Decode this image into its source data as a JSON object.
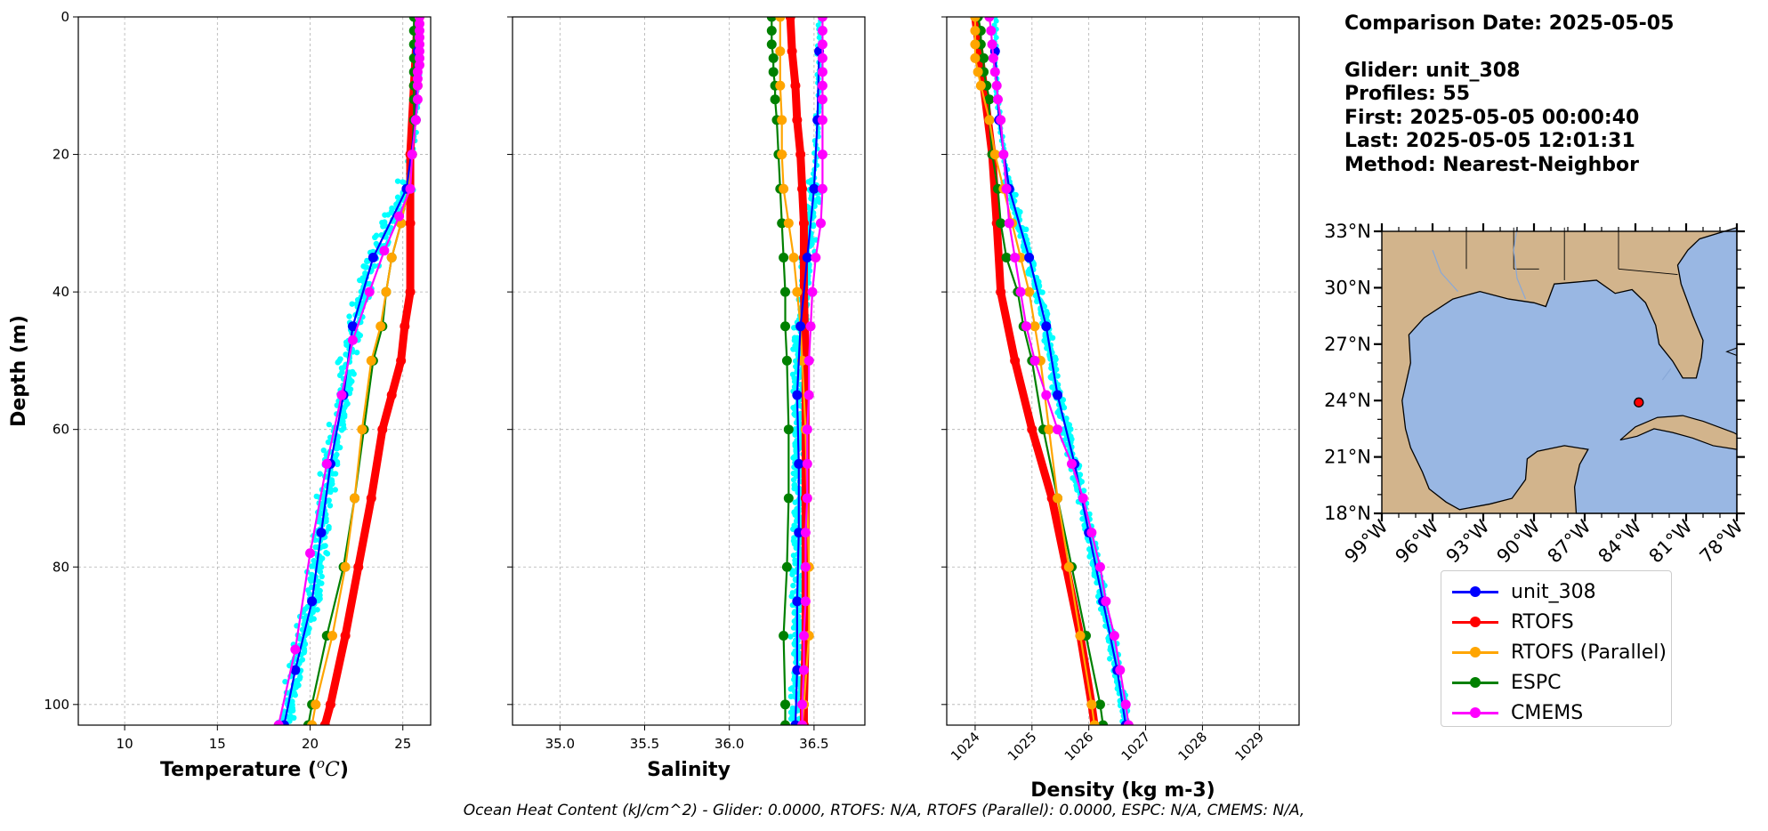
{
  "info": {
    "comparison_date": "Comparison Date: 2025-05-05",
    "glider": "Glider: unit_308",
    "profiles": "Profiles: 55",
    "first": "First: 2025-05-05 00:00:40",
    "last": "Last: 2025-05-05 12:01:31",
    "method": "Method: Nearest-Neighbor"
  },
  "footer_text": "Ocean Heat Content (kJ/cm^2) - Glider: 0.0000,  RTOFS: N/A,  RTOFS (Parallel): 0.0000,  ESPC: N/A,  CMEMS: N/A,",
  "legend": [
    {
      "label": "unit_308",
      "color": "#0000ff"
    },
    {
      "label": "RTOFS",
      "color": "#ff0000"
    },
    {
      "label": "RTOFS (Parallel)",
      "color": "#ffa500"
    },
    {
      "label": "ESPC",
      "color": "#008000"
    },
    {
      "label": "CMEMS",
      "color": "#ff00ff"
    }
  ],
  "colors": {
    "glider_scatter": "#00ffff",
    "unit_308": "#0000ff",
    "RTOFS": "#ff0000",
    "RTOFS_parallel": "#ffa500",
    "ESPC": "#008000",
    "CMEMS": "#ff00ff",
    "land": "#d2b48c",
    "water": "#99b7e3"
  },
  "chart_data": [
    {
      "type": "line",
      "ylabel": "Depth (m)",
      "xlabel": "Temperature ($^{o}C$)",
      "xlabel_display": "Temperature (",
      "xlabel_unit": "oC",
      "xlim": [
        7.5,
        26.5
      ],
      "ylim": [
        103,
        0
      ],
      "xticks": [
        10,
        15,
        20,
        25
      ],
      "yticks": [
        0,
        20,
        40,
        60,
        80,
        100
      ],
      "grid": true,
      "series": [
        {
          "name": "unit_308",
          "depth": [
            5,
            15,
            25,
            35,
            45,
            55,
            65,
            75,
            85,
            95,
            103
          ],
          "values": [
            25.8,
            25.7,
            25.2,
            23.4,
            22.3,
            21.8,
            21.1,
            20.6,
            20.1,
            19.2,
            18.6
          ]
        },
        {
          "name": "RTOFS",
          "depth": [
            0,
            10,
            20,
            30,
            40,
            45,
            50,
            55,
            60,
            70,
            80,
            90,
            100,
            103
          ],
          "values": [
            25.8,
            25.6,
            25.4,
            25.4,
            25.4,
            25.1,
            24.9,
            24.4,
            23.9,
            23.3,
            22.6,
            21.9,
            21.1,
            20.8
          ]
        },
        {
          "name": "RTOFS (Parallel)",
          "depth": [
            0,
            5,
            10,
            15,
            20,
            25,
            30,
            35,
            40,
            45,
            50,
            60,
            70,
            80,
            90,
            100,
            103
          ],
          "values": [
            25.9,
            25.8,
            25.8,
            25.7,
            25.5,
            25.3,
            24.9,
            24.4,
            24.1,
            23.8,
            23.3,
            22.8,
            22.4,
            21.9,
            21.2,
            20.3,
            20.1
          ]
        },
        {
          "name": "ESPC",
          "depth": [
            0,
            2,
            4,
            6,
            8,
            10,
            12,
            15,
            20,
            25,
            30,
            35,
            40,
            45,
            50,
            60,
            70,
            80,
            90,
            100,
            103
          ],
          "values": [
            25.6,
            25.6,
            25.6,
            25.6,
            25.6,
            25.6,
            25.6,
            25.6,
            25.5,
            25.3,
            24.9,
            24.4,
            24.1,
            23.9,
            23.4,
            22.9,
            22.4,
            21.8,
            20.9,
            20.1,
            19.9
          ]
        },
        {
          "name": "CMEMS",
          "depth": [
            0,
            1,
            2,
            3,
            4,
            5,
            6,
            7,
            8,
            9,
            10,
            12,
            15,
            20,
            25,
            29,
            34,
            40,
            47,
            55,
            65,
            78,
            92,
            103
          ],
          "values": [
            25.9,
            25.9,
            25.9,
            25.9,
            25.9,
            25.9,
            25.9,
            25.9,
            25.8,
            25.8,
            25.8,
            25.8,
            25.7,
            25.5,
            25.4,
            24.8,
            24.0,
            23.2,
            22.3,
            21.7,
            20.9,
            20.0,
            19.2,
            18.3
          ]
        }
      ]
    },
    {
      "type": "line",
      "xlabel": "Salinity",
      "xlim": [
        34.72,
        36.8
      ],
      "ylim": [
        103,
        0
      ],
      "xticks": [
        35.0,
        35.5,
        36.0,
        36.5
      ],
      "yticks": [
        0,
        20,
        40,
        60,
        80,
        100
      ],
      "grid": true,
      "series": [
        {
          "name": "unit_308",
          "depth": [
            5,
            15,
            25,
            35,
            45,
            55,
            65,
            75,
            85,
            95,
            103
          ],
          "values": [
            36.53,
            36.52,
            36.5,
            36.46,
            36.42,
            36.4,
            36.41,
            36.41,
            36.4,
            36.4,
            36.39
          ]
        },
        {
          "name": "RTOFS",
          "depth": [
            0,
            5,
            10,
            15,
            20,
            25,
            30,
            35,
            40,
            50,
            60,
            70,
            80,
            90,
            100,
            103
          ],
          "values": [
            36.36,
            36.37,
            36.39,
            36.4,
            36.42,
            36.43,
            36.44,
            36.44,
            36.44,
            36.45,
            36.45,
            36.45,
            36.45,
            36.45,
            36.44,
            36.44
          ]
        },
        {
          "name": "RTOFS (Parallel)",
          "depth": [
            0,
            5,
            10,
            15,
            20,
            25,
            30,
            35,
            40,
            45,
            50,
            60,
            70,
            80,
            90,
            100,
            103
          ],
          "values": [
            36.3,
            36.3,
            36.3,
            36.31,
            36.31,
            36.32,
            36.35,
            36.38,
            36.4,
            36.42,
            36.43,
            36.45,
            36.46,
            36.47,
            36.47,
            36.44,
            36.43
          ]
        },
        {
          "name": "ESPC",
          "depth": [
            0,
            2,
            4,
            6,
            8,
            10,
            12,
            15,
            20,
            25,
            30,
            35,
            40,
            45,
            50,
            60,
            70,
            80,
            90,
            100,
            103
          ],
          "values": [
            36.25,
            36.25,
            36.25,
            36.26,
            36.26,
            36.27,
            36.27,
            36.28,
            36.29,
            36.3,
            36.31,
            36.32,
            36.33,
            36.33,
            36.34,
            36.35,
            36.35,
            36.34,
            36.32,
            36.33,
            36.33
          ]
        },
        {
          "name": "CMEMS",
          "depth": [
            0,
            2,
            4,
            6,
            8,
            10,
            12,
            15,
            20,
            25,
            30,
            35,
            40,
            45,
            50,
            55,
            60,
            65,
            70,
            75,
            80,
            85,
            90,
            95,
            100,
            103
          ],
          "values": [
            36.55,
            36.55,
            36.55,
            36.55,
            36.55,
            36.55,
            36.55,
            36.55,
            36.55,
            36.55,
            36.54,
            36.51,
            36.49,
            36.48,
            36.47,
            36.47,
            36.46,
            36.46,
            36.46,
            36.45,
            36.45,
            36.45,
            36.44,
            36.44,
            36.43,
            36.43
          ]
        }
      ]
    },
    {
      "type": "line",
      "xlabel": "Density (kg m-3)",
      "xlim": [
        1023.5,
        1029.7
      ],
      "ylim": [
        103,
        0
      ],
      "xticks": [
        1024,
        1025,
        1026,
        1027,
        1028,
        1029
      ],
      "yticks": [
        0,
        20,
        40,
        60,
        80,
        100
      ],
      "grid": true,
      "series": [
        {
          "name": "unit_308",
          "depth": [
            5,
            15,
            25,
            35,
            45,
            55,
            65,
            75,
            85,
            95,
            103
          ],
          "values": [
            1024.35,
            1024.42,
            1024.6,
            1024.95,
            1025.25,
            1025.45,
            1025.75,
            1026.0,
            1026.25,
            1026.5,
            1026.65
          ]
        },
        {
          "name": "RTOFS",
          "depth": [
            0,
            10,
            20,
            30,
            40,
            50,
            60,
            70,
            80,
            90,
            100,
            103
          ],
          "values": [
            1024.0,
            1024.15,
            1024.3,
            1024.38,
            1024.45,
            1024.7,
            1025.0,
            1025.35,
            1025.6,
            1025.85,
            1026.05,
            1026.1
          ]
        },
        {
          "name": "RTOFS (Parallel)",
          "depth": [
            0,
            2,
            4,
            6,
            8,
            10,
            15,
            20,
            25,
            30,
            35,
            40,
            45,
            50,
            60,
            70,
            80,
            90,
            100,
            103
          ],
          "values": [
            1024.0,
            1024.0,
            1024.0,
            1024.0,
            1024.05,
            1024.1,
            1024.25,
            1024.35,
            1024.5,
            1024.65,
            1024.8,
            1024.95,
            1025.05,
            1025.15,
            1025.3,
            1025.45,
            1025.65,
            1025.85,
            1026.05,
            1026.1
          ]
        },
        {
          "name": "ESPC",
          "depth": [
            0,
            2,
            4,
            6,
            8,
            10,
            12,
            15,
            20,
            25,
            30,
            35,
            40,
            45,
            50,
            60,
            70,
            80,
            90,
            100,
            103
          ],
          "values": [
            1024.05,
            1024.1,
            1024.1,
            1024.15,
            1024.15,
            1024.2,
            1024.25,
            1024.25,
            1024.3,
            1024.4,
            1024.45,
            1024.55,
            1024.75,
            1024.85,
            1025.0,
            1025.2,
            1025.45,
            1025.7,
            1025.95,
            1026.2,
            1026.25
          ]
        },
        {
          "name": "CMEMS",
          "depth": [
            0,
            2,
            4,
            6,
            8,
            10,
            12,
            15,
            20,
            25,
            30,
            35,
            40,
            45,
            50,
            55,
            60,
            65,
            70,
            75,
            80,
            85,
            90,
            95,
            100,
            103
          ],
          "values": [
            1024.25,
            1024.28,
            1024.3,
            1024.32,
            1024.35,
            1024.38,
            1024.4,
            1024.45,
            1024.5,
            1024.55,
            1024.6,
            1024.7,
            1024.8,
            1024.9,
            1025.05,
            1025.25,
            1025.45,
            1025.7,
            1025.9,
            1026.05,
            1026.2,
            1026.3,
            1026.45,
            1026.55,
            1026.65,
            1026.7
          ]
        }
      ]
    },
    {
      "type": "map",
      "lon_range": [
        -99,
        -78
      ],
      "lat_range": [
        18,
        33
      ],
      "lon_ticks": [
        "99°W",
        "96°W",
        "93°W",
        "90°W",
        "87°W",
        "84°W",
        "81°W",
        "78°W"
      ],
      "lat_ticks": [
        "33°N",
        "30°N",
        "27°N",
        "24°N",
        "21°N",
        "18°N"
      ],
      "marker": {
        "lon": -83.8,
        "lat": 23.9
      }
    }
  ]
}
